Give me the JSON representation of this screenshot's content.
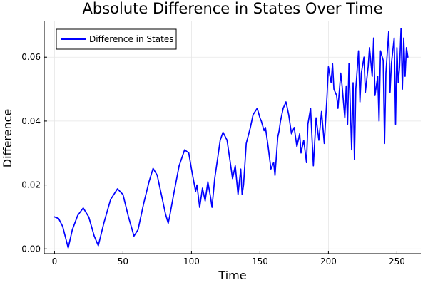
{
  "chart_data": {
    "type": "line",
    "title": "Absolute Difference in States Over Time",
    "xlabel": "Time",
    "ylabel": "Difference",
    "xlim": [
      -7.5,
      267.5
    ],
    "ylim": [
      -0.0015,
      0.0712
    ],
    "xticks": [
      0,
      50,
      100,
      150,
      200,
      250
    ],
    "xtick_labels": [
      "0",
      "50",
      "100",
      "150",
      "200",
      "250"
    ],
    "yticks": [
      0.0,
      0.02,
      0.04,
      0.06
    ],
    "ytick_labels": [
      "0.00",
      "0.02",
      "0.04",
      "0.06"
    ],
    "grid": true,
    "legend_position": "top-left",
    "series": [
      {
        "name": "Difference in States",
        "color": "#0000ff",
        "x": [
          0,
          3,
          6,
          10,
          13,
          17,
          21,
          25,
          29,
          32,
          36,
          41,
          46,
          50,
          54,
          58,
          61,
          65,
          69,
          72,
          75,
          78,
          81,
          83,
          84,
          87,
          91,
          95,
          98,
          100,
          103,
          104,
          106,
          108,
          110,
          112,
          114,
          115,
          117,
          119,
          121,
          123,
          126,
          128,
          130,
          132,
          134,
          136,
          137,
          138,
          140,
          143,
          145,
          148,
          150,
          151,
          153,
          154,
          156,
          158,
          160,
          161,
          163,
          164,
          165,
          167,
          169,
          171,
          173,
          175,
          177,
          179,
          180,
          182,
          184,
          185,
          187,
          189,
          191,
          193,
          195,
          197,
          199,
          200,
          202,
          203,
          204,
          206,
          207,
          209,
          210,
          212,
          213,
          214,
          215,
          217,
          218,
          219,
          220,
          222,
          223,
          224,
          226,
          227,
          229,
          230,
          232,
          233,
          234,
          236,
          237,
          238,
          240,
          241,
          242,
          244,
          245,
          246,
          248,
          249,
          250,
          251,
          252,
          253,
          254,
          255,
          256,
          257,
          258
        ],
        "values": [
          0.01,
          0.0095,
          0.007,
          0.0003,
          0.006,
          0.0105,
          0.0128,
          0.01,
          0.004,
          0.001,
          0.008,
          0.0155,
          0.0188,
          0.017,
          0.01,
          0.004,
          0.006,
          0.014,
          0.021,
          0.0252,
          0.023,
          0.017,
          0.011,
          0.008,
          0.01,
          0.017,
          0.026,
          0.031,
          0.03,
          0.025,
          0.018,
          0.02,
          0.013,
          0.019,
          0.015,
          0.021,
          0.016,
          0.013,
          0.022,
          0.028,
          0.034,
          0.0365,
          0.034,
          0.028,
          0.022,
          0.026,
          0.017,
          0.025,
          0.017,
          0.02,
          0.033,
          0.038,
          0.042,
          0.044,
          0.041,
          0.04,
          0.037,
          0.038,
          0.032,
          0.025,
          0.027,
          0.023,
          0.035,
          0.037,
          0.04,
          0.044,
          0.046,
          0.042,
          0.036,
          0.038,
          0.032,
          0.036,
          0.03,
          0.034,
          0.027,
          0.039,
          0.044,
          0.026,
          0.041,
          0.034,
          0.043,
          0.033,
          0.048,
          0.057,
          0.052,
          0.058,
          0.05,
          0.048,
          0.044,
          0.055,
          0.051,
          0.041,
          0.051,
          0.039,
          0.058,
          0.031,
          0.052,
          0.028,
          0.05,
          0.062,
          0.046,
          0.055,
          0.06,
          0.049,
          0.057,
          0.063,
          0.054,
          0.066,
          0.048,
          0.054,
          0.04,
          0.062,
          0.059,
          0.033,
          0.055,
          0.068,
          0.049,
          0.058,
          0.066,
          0.039,
          0.063,
          0.052,
          0.057,
          0.069,
          0.05,
          0.066,
          0.054,
          0.063,
          0.06
        ]
      }
    ]
  }
}
